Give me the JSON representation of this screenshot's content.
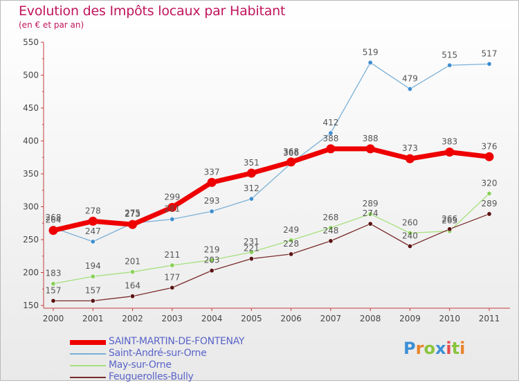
{
  "title": "Evolution des Impôts locaux par Habitant",
  "subtitle": "(en € et par an)",
  "logo": {
    "text": "Proxiti",
    "letter_colors": [
      "#3c8fd6",
      "#e8832a",
      "#8ac43c",
      "#3c8fd6",
      "#e84a4a",
      "#8ac43c",
      "#e8832a"
    ]
  },
  "chart_data": {
    "type": "line",
    "title": "Evolution des Impôts locaux par Habitant",
    "subtitle": "(en € et par an)",
    "x": [
      "2000",
      "2001",
      "2002",
      "2003",
      "2004",
      "2005",
      "2006",
      "2007",
      "2008",
      "2009",
      "2010",
      "2011"
    ],
    "yticks": [
      "550",
      "500",
      "450",
      "400",
      "350",
      "300",
      "250",
      "200",
      "150"
    ],
    "ylim": [
      150,
      550
    ],
    "grid": false,
    "legend_position": "bottom-left",
    "series": [
      {
        "name": "Saint-André-sur-Orne",
        "color": "#7ab0d6",
        "marker": "#3e8ed0",
        "width": 1.3,
        "values": [
          268,
          247,
          275,
          281,
          293,
          312,
          366,
          412,
          519,
          479,
          515,
          517
        ],
        "labels": [
          "268",
          "247",
          "275",
          "281",
          "293",
          "312",
          "366",
          "412",
          "519",
          "479",
          "515",
          "517"
        ]
      },
      {
        "name": "May-sur-Orne",
        "color": "#a6e07e",
        "marker": "#8ad05a",
        "width": 1.3,
        "values": [
          183,
          194,
          201,
          211,
          219,
          231,
          249,
          268,
          289,
          260,
          263,
          320
        ],
        "labels": [
          "183",
          "194",
          "201",
          "211",
          "219",
          "231",
          "249",
          "268",
          "289",
          "260",
          "263",
          "320"
        ]
      },
      {
        "name": "Feuguerolles-Bully",
        "color": "#7a2a2a",
        "marker": "#5a1414",
        "width": 1.3,
        "values": [
          157,
          157,
          164,
          177,
          203,
          221,
          228,
          248,
          274,
          240,
          266,
          289
        ],
        "labels": [
          "157",
          "157",
          "164",
          "177",
          "203",
          "221",
          "228",
          "248",
          "274",
          "240",
          "266",
          "289"
        ]
      },
      {
        "name": "SAINT-MARTIN-DE-FONTENAY",
        "color": "#ee0000",
        "marker": "#ee0000",
        "width": 7,
        "values": [
          264,
          278,
          273,
          299,
          337,
          351,
          368,
          388,
          388,
          373,
          383,
          376
        ],
        "labels": [
          "264",
          "278",
          "273",
          "299",
          "337",
          "351",
          "368",
          "388",
          "388",
          "373",
          "383",
          "376"
        ]
      }
    ]
  },
  "legend": [
    {
      "label": "SAINT-MARTIN-DE-FONTENAY",
      "color": "#ee0000",
      "thickness": 7
    },
    {
      "label": "Saint-André-sur-Orne",
      "color": "#7ab0d6",
      "thickness": 2
    },
    {
      "label": "May-sur-Orne",
      "color": "#a6e07e",
      "thickness": 2
    },
    {
      "label": "Feuguerolles-Bully",
      "color": "#7a2a2a",
      "thickness": 2
    }
  ]
}
